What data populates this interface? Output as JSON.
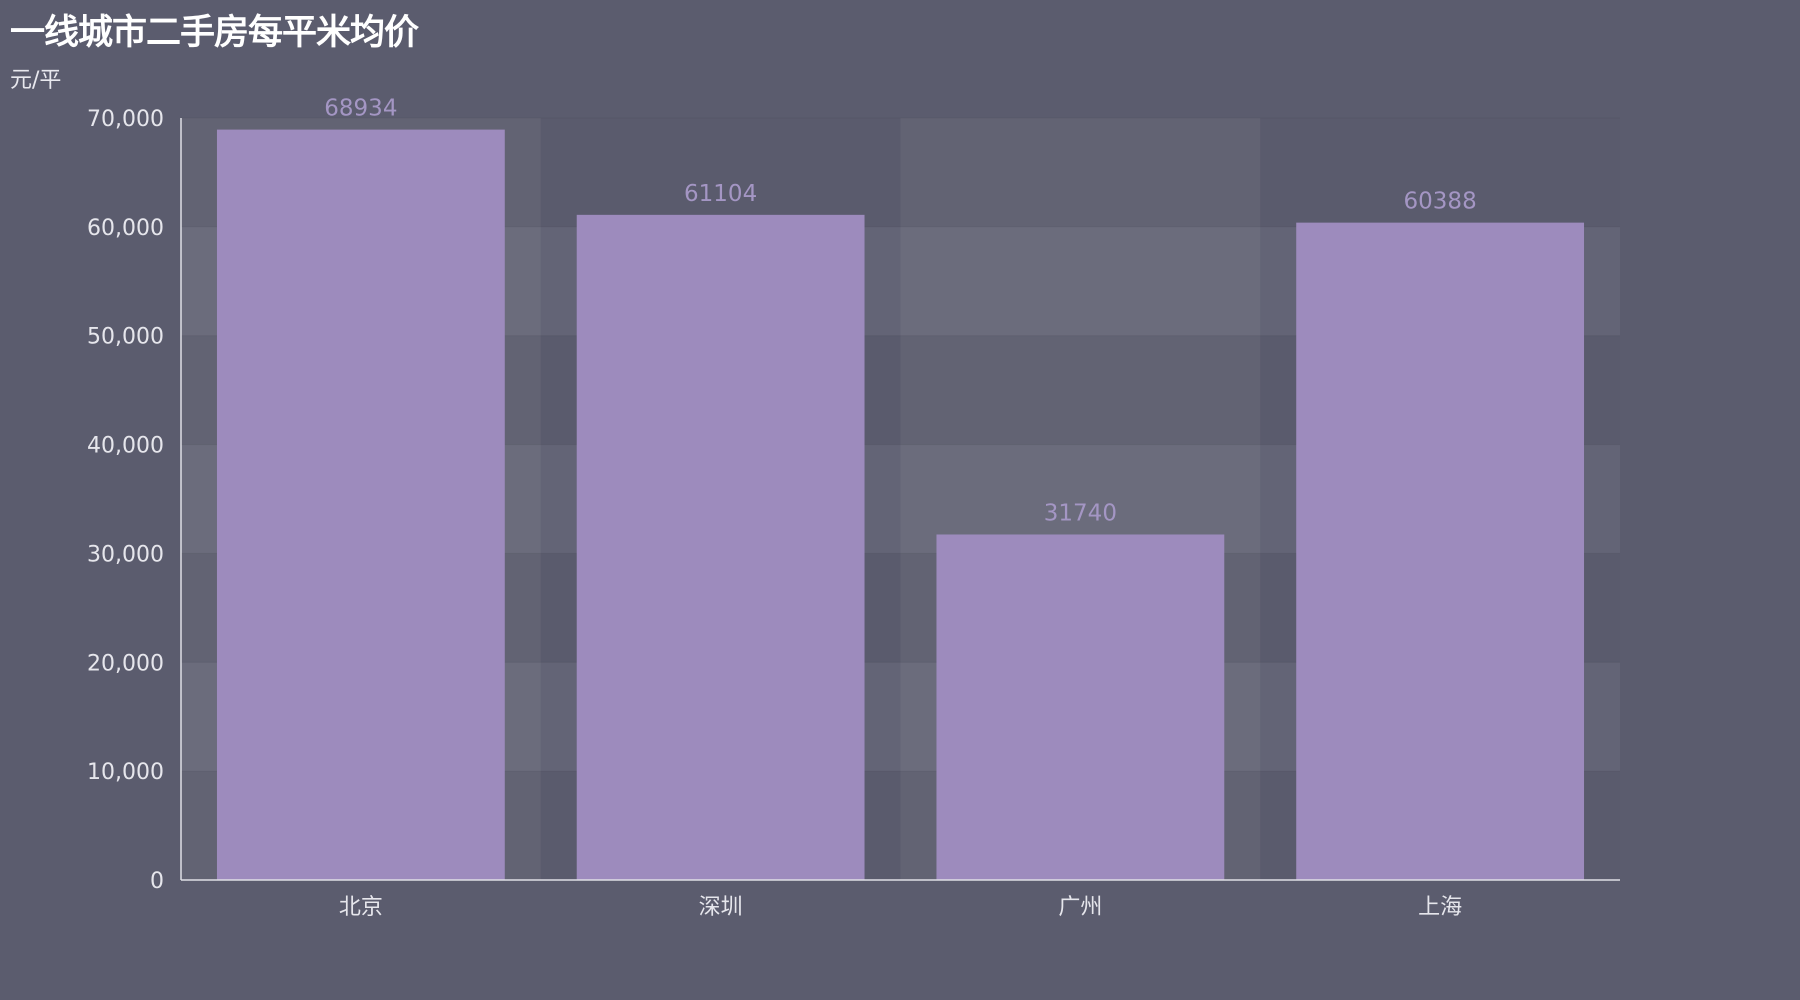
{
  "chart_data": {
    "type": "bar",
    "title": "一线城市二手房每平米均价",
    "ylabel": "元/平",
    "categories": [
      "北京",
      "深圳",
      "广州",
      "上海"
    ],
    "series": [
      {
        "values": [
          68934,
          61104,
          31740,
          60388
        ]
      }
    ],
    "ylim": [
      0,
      70000
    ],
    "yticks": [
      0,
      10000,
      20000,
      30000,
      40000,
      50000,
      60000,
      70000
    ],
    "ytick_labels": [
      "0",
      "10,000",
      "20,000",
      "30,000",
      "40,000",
      "50,000",
      "60,000",
      "70,000"
    ],
    "data_labels": true,
    "grid": true,
    "split_area": true,
    "colors": {
      "bar": "#9d8bbd",
      "label": "#a496c4",
      "background": "#5b5c6e",
      "axis": "#e0e0e6",
      "text": "#e6e6ec",
      "title": "#ffffff"
    }
  }
}
